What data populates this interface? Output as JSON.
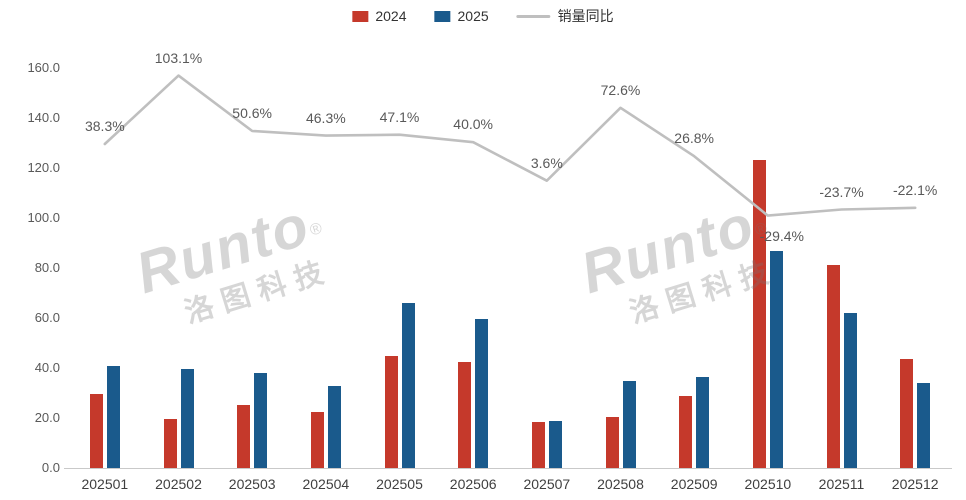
{
  "legend": {
    "items": [
      {
        "label": "2024",
        "color": "#c5392b",
        "marker": "square"
      },
      {
        "label": "2025",
        "color": "#1a5a8c",
        "marker": "square"
      },
      {
        "label": "销量同比",
        "color": "#bfbfbf",
        "marker": "line"
      }
    ]
  },
  "watermark": {
    "brand": "Runto",
    "reg": "®",
    "cn": "洛图科技"
  },
  "chart_data": {
    "type": "bar",
    "subtype": "grouped bars with YoY percentage line overlay",
    "title": "",
    "xlabel": "",
    "ylabel": "",
    "categories": [
      "202501",
      "202502",
      "202503",
      "202504",
      "202505",
      "202506",
      "202507",
      "202508",
      "202509",
      "202510",
      "202511",
      "202512"
    ],
    "series": [
      {
        "name": "2024",
        "type": "bar",
        "color": "#c5392b",
        "values": [
          29.6,
          19.5,
          25.2,
          22.6,
          45.0,
          42.5,
          18.3,
          20.3,
          28.8,
          123.3,
          81.3,
          43.5
        ]
      },
      {
        "name": "2025",
        "type": "bar",
        "color": "#1a5a8c",
        "values": [
          41.0,
          39.5,
          38.0,
          33.0,
          66.0,
          59.5,
          19.0,
          35.0,
          36.5,
          87.0,
          62.0,
          33.9
        ]
      },
      {
        "name": "销量同比",
        "type": "line",
        "color": "#bfbfbf",
        "unit": "%",
        "values": [
          38.3,
          103.1,
          50.6,
          46.3,
          47.1,
          40.0,
          3.6,
          72.6,
          26.8,
          -29.4,
          -23.7,
          -22.1
        ],
        "labels": [
          "38.3%",
          "103.1%",
          "50.6%",
          "46.3%",
          "47.1%",
          "40.0%",
          "3.6%",
          "72.6%",
          "26.8%",
          "-29.4%",
          "-23.7%",
          "-22.1%"
        ]
      }
    ],
    "ylim": [
      0,
      160
    ],
    "ytick_step": 20,
    "ytick_labels": [
      "0.0",
      "20.0",
      "40.0",
      "60.0",
      "80.0",
      "100.0",
      "120.0",
      "140.0",
      "160.0"
    ],
    "grid": false,
    "legend_position": "top-center"
  }
}
